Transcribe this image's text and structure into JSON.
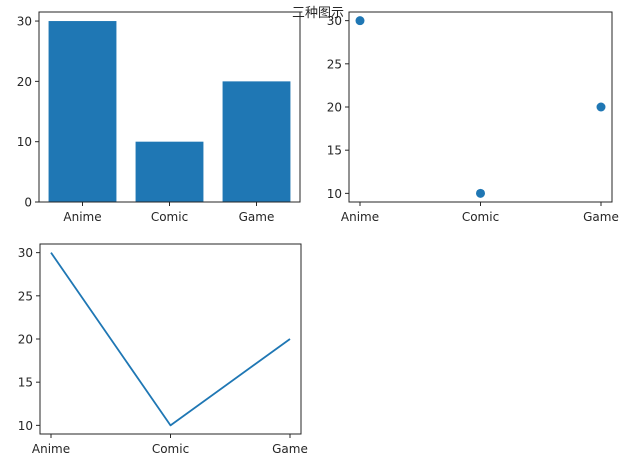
{
  "figure": {
    "suptitle": "三种图示",
    "series_color": "#1f77b4",
    "axes_color": "#262626"
  },
  "chart_data": [
    {
      "type": "bar",
      "categories": [
        "Anime",
        "Comic",
        "Game"
      ],
      "values": [
        30,
        10,
        20
      ],
      "ylim": [
        0,
        31.5
      ],
      "yticks": [
        0,
        10,
        20,
        30
      ],
      "grid": false
    },
    {
      "type": "scatter",
      "categories": [
        "Anime",
        "Comic",
        "Game"
      ],
      "values": [
        30,
        10,
        20
      ],
      "ylim": [
        9,
        31
      ],
      "yticks": [
        10,
        15,
        20,
        25,
        30
      ],
      "grid": false
    },
    {
      "type": "line",
      "categories": [
        "Anime",
        "Comic",
        "Game"
      ],
      "values": [
        30,
        10,
        20
      ],
      "ylim": [
        9,
        31
      ],
      "yticks": [
        10,
        15,
        20,
        25,
        30
      ],
      "grid": false
    }
  ]
}
